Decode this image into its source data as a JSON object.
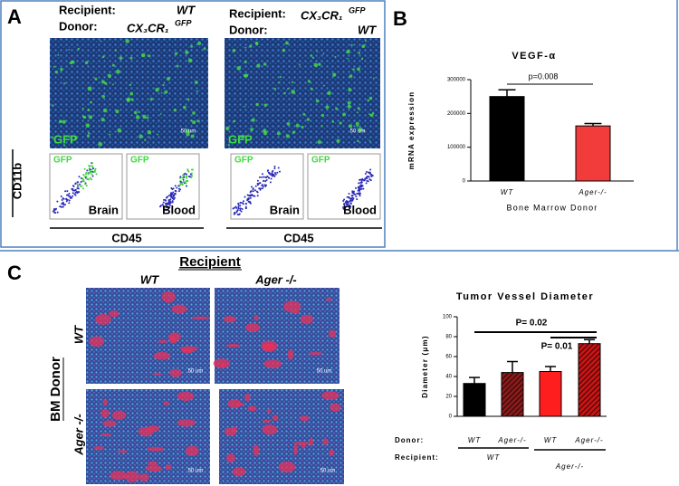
{
  "panel_a": {
    "label": "A",
    "left": {
      "recipient_label": "Recipient:",
      "recipient": "WT",
      "donor_label": "Donor:",
      "donor": "CX₃CR₁",
      "donor_sup": "GFP"
    },
    "right": {
      "recipient_label": "Recipient:",
      "recipient": "CX₃CR₁",
      "recipient_sup": "GFP",
      "donor_label": "Donor:",
      "donor": "WT"
    },
    "image_labels": [
      "GFP",
      "GFP"
    ],
    "scale_bars": [
      "50 um",
      "50 um"
    ],
    "flow": {
      "y_axis": "CD11b",
      "x_axes": [
        "CD45",
        "CD45"
      ],
      "plots": [
        {
          "tag": "GFP",
          "tissue": "Brain"
        },
        {
          "tag": "GFP",
          "tissue": "Blood"
        },
        {
          "tag": "GFP",
          "tissue": "Brain"
        },
        {
          "tag": "GFP",
          "tissue": "Blood"
        }
      ]
    }
  },
  "panel_b": {
    "label": "B"
  },
  "panel_c": {
    "label": "C",
    "recipient_title": "Recipient",
    "columns": [
      "WT",
      "Ager -/-"
    ],
    "row_title": "BM Donor",
    "rows": [
      "WT",
      "Ager -/-"
    ],
    "scale_bars": [
      "50 um",
      "50 um",
      "50 um",
      "50 um"
    ]
  },
  "chart_data": [
    {
      "type": "bar",
      "title": "VEGF-α",
      "ylabel": "mRNA expression",
      "xlabel": "Bone Marrow Donor",
      "categories": [
        "WT",
        "Ager-/-"
      ],
      "values": [
        250000,
        163000
      ],
      "errors": [
        20000,
        7000
      ],
      "colors": [
        "#000000",
        "#f23c3c"
      ],
      "hatched": [
        false,
        false
      ],
      "ylim": [
        0,
        300000
      ],
      "yticks": [
        0,
        100000,
        200000,
        300000
      ],
      "annotations": [
        "p=0.008"
      ]
    },
    {
      "type": "bar",
      "title": "Tumor Vessel Diameter",
      "ylabel": "Diameter (μm)",
      "categories": [
        "WT",
        "Ager-/-",
        "WT",
        "Ager-/-"
      ],
      "values": [
        33,
        44,
        45,
        73
      ],
      "errors": [
        6,
        11,
        5,
        4
      ],
      "colors": [
        "#000000",
        "#8b1a1a",
        "#ff1e1e",
        "#c81414"
      ],
      "hatched": [
        false,
        true,
        false,
        true
      ],
      "ylim": [
        0,
        100
      ],
      "yticks": [
        0,
        20,
        40,
        60,
        80,
        100
      ],
      "x_row_label": "Donor:",
      "group_row_label": "Recipient:",
      "groups": [
        "WT",
        "Ager-/-"
      ],
      "annotations": [
        "P= 0.02",
        "P= 0.01"
      ]
    }
  ]
}
